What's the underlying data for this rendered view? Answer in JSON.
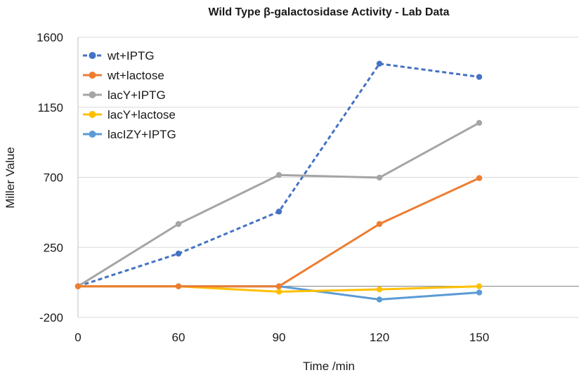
{
  "chart_data": {
    "type": "line",
    "title": "Wild Type β-galactosidase Activity - Lab Data",
    "xlabel": "Time /min",
    "ylabel": "Miller Value",
    "categories": [
      "0",
      "60",
      "90",
      "120",
      "150"
    ],
    "ylim": [
      -200,
      1600
    ],
    "yticks": [
      "1600",
      "1150",
      "700",
      "250",
      "-200"
    ],
    "ytick_values": [
      1600,
      1150,
      700,
      250,
      -200
    ],
    "grid": "horizontal",
    "legend_position": "top-left",
    "series": [
      {
        "name": "wt+IPTG",
        "color": "#4472C4",
        "dashed": true,
        "values": [
          0,
          210,
          480,
          1430,
          1345
        ]
      },
      {
        "name": "wt+lactose",
        "color": "#ED7D31",
        "dashed": false,
        "values": [
          0,
          0,
          0,
          400,
          695
        ]
      },
      {
        "name": "lacY+IPTG",
        "color": "#A5A5A5",
        "dashed": false,
        "values": [
          0,
          400,
          715,
          698,
          1050
        ]
      },
      {
        "name": "lacY+lactose",
        "color": "#FFC000",
        "dashed": false,
        "values": [
          0,
          0,
          -35,
          -20,
          0
        ]
      },
      {
        "name": "lacIZY+IPTG",
        "color": "#5B9BD5",
        "dashed": false,
        "values": [
          0,
          0,
          0,
          -85,
          -40
        ]
      }
    ]
  }
}
